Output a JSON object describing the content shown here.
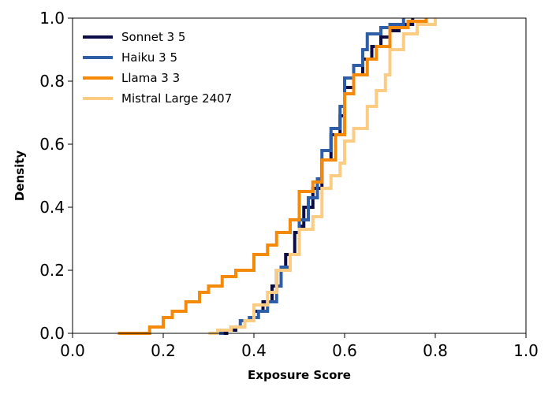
{
  "chart_data": {
    "type": "line",
    "subtype": "empirical-cdf-step",
    "title": "",
    "xlabel": "Exposure Score",
    "ylabel": "Density",
    "xlim": [
      0.0,
      1.0
    ],
    "ylim": [
      0.0,
      1.0
    ],
    "xticks": [
      0.0,
      0.2,
      0.4,
      0.6,
      0.8,
      1.0
    ],
    "xtick_labels": [
      "0.0",
      "0.2",
      "0.4",
      "0.6",
      "0.8",
      "1.0"
    ],
    "yticks": [
      0.0,
      0.2,
      0.4,
      0.6,
      0.8,
      1.0
    ],
    "ytick_labels": [
      "0.0",
      "0.2",
      "0.4",
      "0.6",
      "0.8",
      "1.0"
    ],
    "grid": false,
    "legend_position": "upper-left",
    "series": [
      {
        "name": "Sonnet 3 5",
        "color": "#0b0b45",
        "points": [
          [
            0.32,
            0.0
          ],
          [
            0.34,
            0.01
          ],
          [
            0.36,
            0.02
          ],
          [
            0.38,
            0.04
          ],
          [
            0.4,
            0.07
          ],
          [
            0.42,
            0.1
          ],
          [
            0.44,
            0.15
          ],
          [
            0.45,
            0.2
          ],
          [
            0.47,
            0.25
          ],
          [
            0.49,
            0.32
          ],
          [
            0.5,
            0.34
          ],
          [
            0.51,
            0.4
          ],
          [
            0.53,
            0.46
          ],
          [
            0.55,
            0.55
          ],
          [
            0.57,
            0.63
          ],
          [
            0.59,
            0.69
          ],
          [
            0.6,
            0.71
          ],
          [
            0.6,
            0.78
          ],
          [
            0.62,
            0.82
          ],
          [
            0.64,
            0.87
          ],
          [
            0.66,
            0.91
          ],
          [
            0.68,
            0.94
          ],
          [
            0.7,
            0.96
          ],
          [
            0.72,
            0.98
          ],
          [
            0.75,
            1.0
          ]
        ]
      },
      {
        "name": "Haiku 3 5",
        "color": "#2f5ea8",
        "points": [
          [
            0.31,
            0.0
          ],
          [
            0.33,
            0.01
          ],
          [
            0.35,
            0.02
          ],
          [
            0.37,
            0.04
          ],
          [
            0.39,
            0.05
          ],
          [
            0.41,
            0.07
          ],
          [
            0.43,
            0.1
          ],
          [
            0.45,
            0.15
          ],
          [
            0.46,
            0.21
          ],
          [
            0.48,
            0.25
          ],
          [
            0.5,
            0.29
          ],
          [
            0.5,
            0.36
          ],
          [
            0.52,
            0.43
          ],
          [
            0.54,
            0.49
          ],
          [
            0.55,
            0.58
          ],
          [
            0.57,
            0.65
          ],
          [
            0.59,
            0.72
          ],
          [
            0.6,
            0.75
          ],
          [
            0.6,
            0.81
          ],
          [
            0.62,
            0.85
          ],
          [
            0.64,
            0.9
          ],
          [
            0.65,
            0.95
          ],
          [
            0.68,
            0.97
          ],
          [
            0.7,
            0.98
          ],
          [
            0.73,
            1.0
          ]
        ]
      },
      {
        "name": "Llama 3 3",
        "color": "#f58a0a",
        "points": [
          [
            0.1,
            0.0
          ],
          [
            0.14,
            0.0
          ],
          [
            0.17,
            0.02
          ],
          [
            0.2,
            0.05
          ],
          [
            0.22,
            0.07
          ],
          [
            0.25,
            0.1
          ],
          [
            0.28,
            0.13
          ],
          [
            0.3,
            0.15
          ],
          [
            0.33,
            0.18
          ],
          [
            0.36,
            0.2
          ],
          [
            0.4,
            0.22
          ],
          [
            0.4,
            0.25
          ],
          [
            0.43,
            0.28
          ],
          [
            0.45,
            0.32
          ],
          [
            0.48,
            0.36
          ],
          [
            0.5,
            0.38
          ],
          [
            0.5,
            0.45
          ],
          [
            0.53,
            0.48
          ],
          [
            0.55,
            0.55
          ],
          [
            0.58,
            0.63
          ],
          [
            0.6,
            0.69
          ],
          [
            0.6,
            0.76
          ],
          [
            0.62,
            0.82
          ],
          [
            0.65,
            0.87
          ],
          [
            0.67,
            0.91
          ],
          [
            0.7,
            0.94
          ],
          [
            0.7,
            0.97
          ],
          [
            0.74,
            0.99
          ],
          [
            0.78,
            1.0
          ]
        ]
      },
      {
        "name": "Mistral Large 2407",
        "color": "#fdcc83",
        "points": [
          [
            0.3,
            0.0
          ],
          [
            0.32,
            0.01
          ],
          [
            0.35,
            0.02
          ],
          [
            0.38,
            0.04
          ],
          [
            0.4,
            0.06
          ],
          [
            0.4,
            0.09
          ],
          [
            0.43,
            0.13
          ],
          [
            0.45,
            0.2
          ],
          [
            0.48,
            0.25
          ],
          [
            0.5,
            0.29
          ],
          [
            0.5,
            0.33
          ],
          [
            0.53,
            0.37
          ],
          [
            0.55,
            0.4
          ],
          [
            0.55,
            0.46
          ],
          [
            0.57,
            0.5
          ],
          [
            0.59,
            0.54
          ],
          [
            0.6,
            0.56
          ],
          [
            0.6,
            0.61
          ],
          [
            0.62,
            0.65
          ],
          [
            0.65,
            0.72
          ],
          [
            0.67,
            0.77
          ],
          [
            0.69,
            0.82
          ],
          [
            0.7,
            0.86
          ],
          [
            0.7,
            0.9
          ],
          [
            0.73,
            0.95
          ],
          [
            0.76,
            0.98
          ],
          [
            0.8,
            1.0
          ]
        ]
      }
    ]
  }
}
